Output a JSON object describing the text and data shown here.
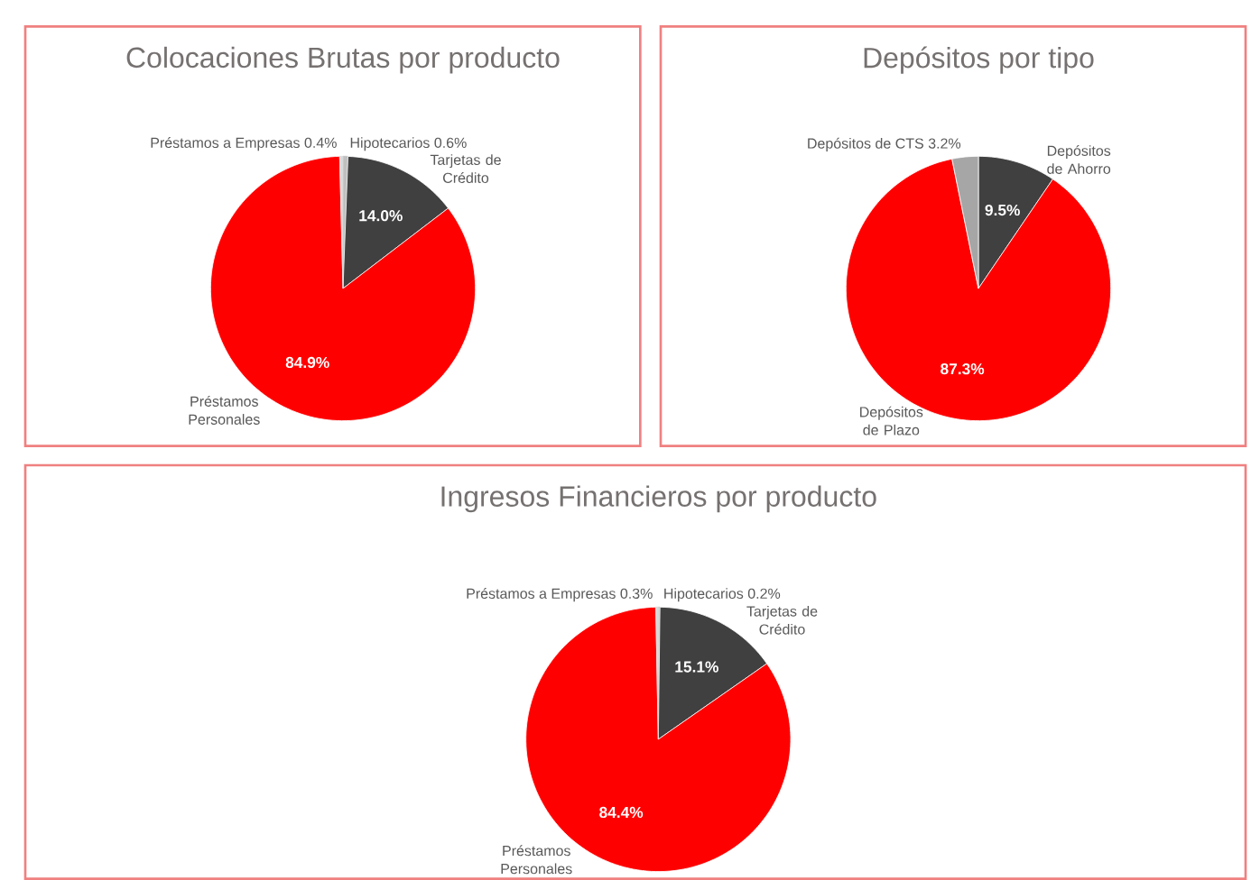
{
  "chart_data": [
    {
      "type": "pie",
      "title": "Colocaciones Brutas por producto",
      "categories": [
        "Hipotecarios",
        "Tarjetas de Crédito",
        "Préstamos Personales",
        "Préstamos a Empresas"
      ],
      "values": [
        0.6,
        14.0,
        84.9,
        0.4
      ],
      "value_labels": [
        "0.6%",
        "14.0%",
        "84.9%",
        "0.4%"
      ],
      "colors": [
        "#bfbfbf",
        "#404040",
        "#ff0000",
        "#d9d9d9"
      ]
    },
    {
      "type": "pie",
      "title": "Depósitos por tipo",
      "categories": [
        "Depósitos de Ahorro",
        "Depósitos de Plazo",
        "Depósitos de CTS"
      ],
      "values": [
        9.5,
        87.3,
        3.2
      ],
      "value_labels": [
        "9.5%",
        "87.3%",
        "3.2%"
      ],
      "colors": [
        "#404040",
        "#ff0000",
        "#a6a6a6"
      ]
    },
    {
      "type": "pie",
      "title": "Ingresos Financieros por producto",
      "categories": [
        "Hipotecarios",
        "Tarjetas de Crédito",
        "Préstamos Personales",
        "Préstamos a Empresas"
      ],
      "values": [
        0.2,
        15.1,
        84.4,
        0.3
      ],
      "value_labels": [
        "0.2%",
        "15.1%",
        "84.4%",
        "0.3%"
      ],
      "colors": [
        "#bfbfbf",
        "#404040",
        "#ff0000",
        "#d9d9d9"
      ]
    }
  ]
}
